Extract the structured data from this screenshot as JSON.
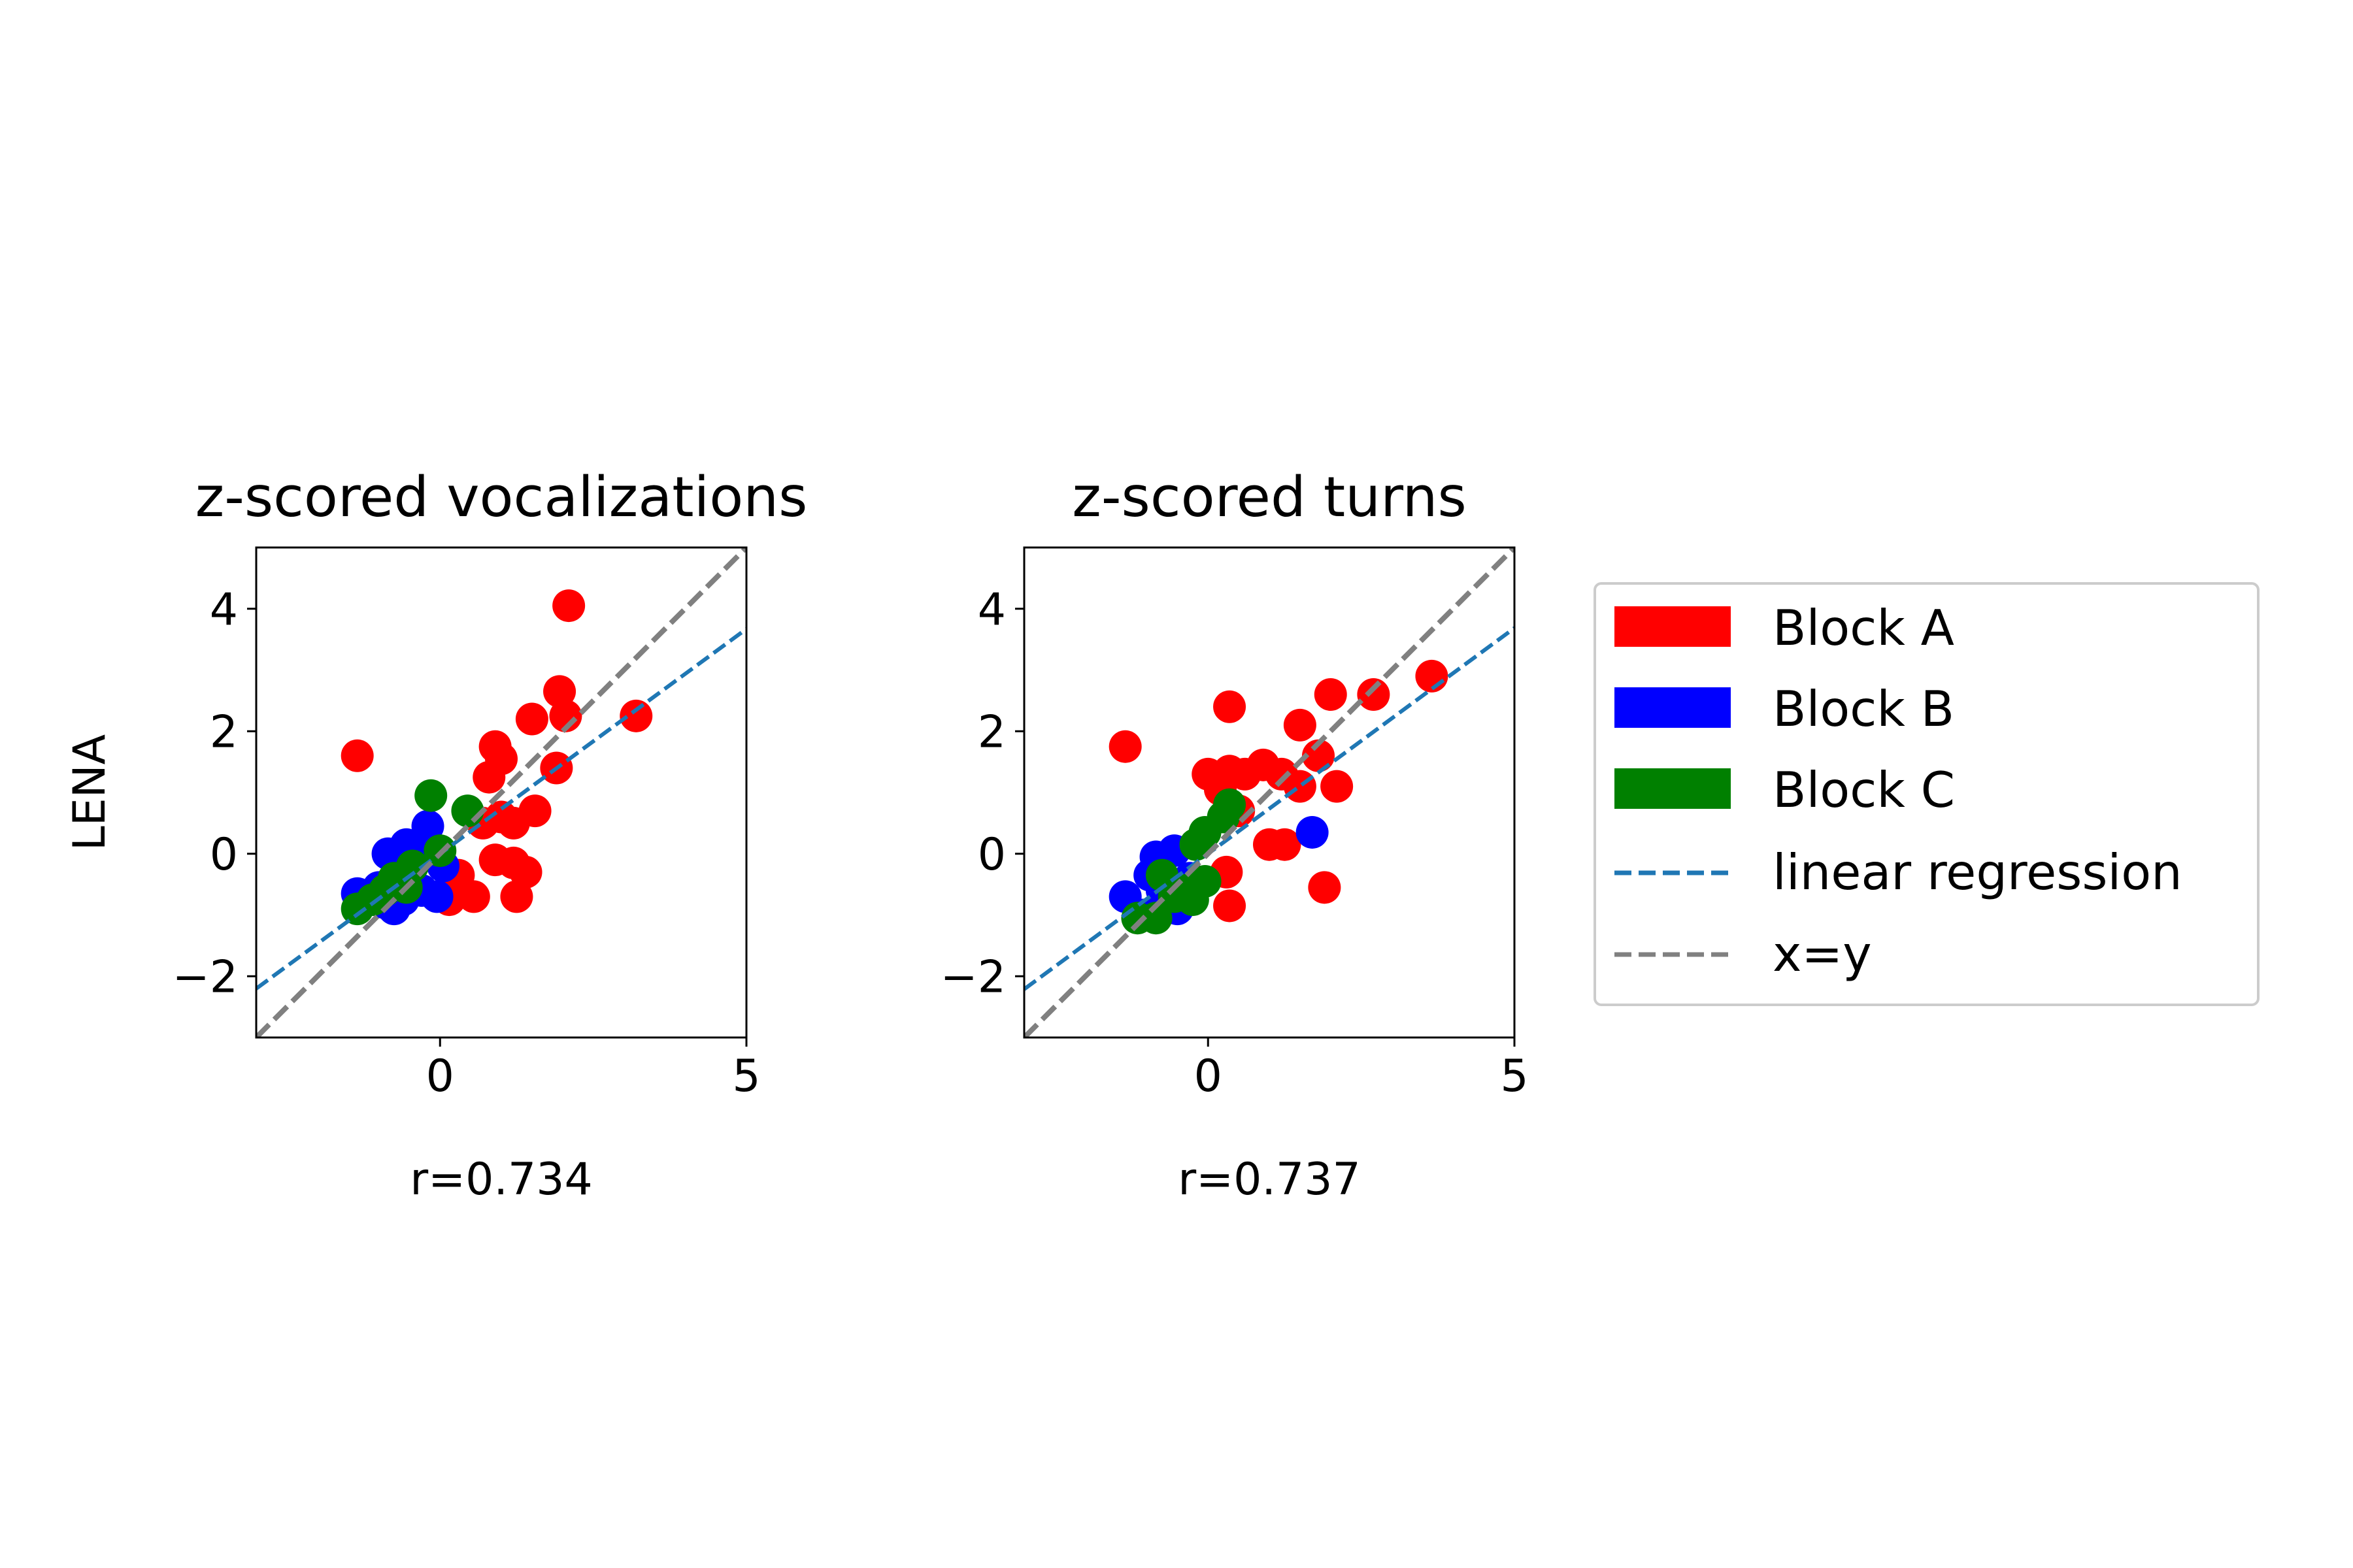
{
  "chart_data": [
    {
      "type": "scatter",
      "title": "z-scored vocalizations",
      "xlabel": "r=0.734",
      "ylabel": "LENA",
      "xlim": [
        -3,
        5
      ],
      "ylim": [
        -3,
        5
      ],
      "xticks": [
        0,
        5
      ],
      "yticks": [
        -2,
        0,
        2,
        4
      ],
      "xtick_labels": [
        "0",
        "5"
      ],
      "ytick_labels": [
        "−2",
        "0",
        "2",
        "4"
      ],
      "grid": false,
      "series": [
        {
          "name": "Block A",
          "color": "#ff0000",
          "points": [
            [
              -1.35,
              1.6
            ],
            [
              2.1,
              4.05
            ],
            [
              1.95,
              2.65
            ],
            [
              2.05,
              2.25
            ],
            [
              1.5,
              2.2
            ],
            [
              3.2,
              2.25
            ],
            [
              0.9,
              1.75
            ],
            [
              1.0,
              1.55
            ],
            [
              0.8,
              1.25
            ],
            [
              1.9,
              1.4
            ],
            [
              1.55,
              0.7
            ],
            [
              1.2,
              0.5
            ],
            [
              0.7,
              0.5
            ],
            [
              1.0,
              0.6
            ],
            [
              1.2,
              -0.15
            ],
            [
              1.4,
              -0.3
            ],
            [
              0.9,
              -0.1
            ],
            [
              1.25,
              -0.7
            ],
            [
              0.55,
              -0.7
            ],
            [
              0.15,
              -0.75
            ],
            [
              0.3,
              -0.35
            ]
          ]
        },
        {
          "name": "Block B",
          "color": "#0000ff",
          "points": [
            [
              -1.35,
              -0.65
            ],
            [
              -0.85,
              0.0
            ],
            [
              -0.55,
              0.15
            ],
            [
              -0.2,
              0.45
            ],
            [
              -0.35,
              0.1
            ],
            [
              -0.05,
              -0.7
            ],
            [
              -0.6,
              -0.75
            ],
            [
              -0.75,
              -0.9
            ],
            [
              -0.9,
              -0.8
            ],
            [
              -0.45,
              -0.5
            ],
            [
              -0.3,
              -0.6
            ],
            [
              -1.0,
              -0.55
            ],
            [
              0.05,
              -0.2
            ]
          ]
        },
        {
          "name": "Block C",
          "color": "#008000",
          "points": [
            [
              -0.15,
              0.95
            ],
            [
              0.45,
              0.7
            ],
            [
              -1.35,
              -0.9
            ],
            [
              -0.75,
              -0.4
            ],
            [
              -0.9,
              -0.6
            ],
            [
              -1.1,
              -0.75
            ],
            [
              -0.55,
              -0.55
            ],
            [
              0.0,
              0.05
            ],
            [
              -0.45,
              -0.2
            ]
          ]
        }
      ],
      "regression": {
        "name": "linear regression",
        "color": "#1f77b4",
        "slope": 0.734,
        "intercept": 0.0
      },
      "identity": {
        "name": "x=y",
        "color": "#808080"
      }
    },
    {
      "type": "scatter",
      "title": "z-scored turns",
      "xlabel": "r=0.737",
      "ylabel": "",
      "xlim": [
        -3,
        5
      ],
      "ylim": [
        -3,
        5
      ],
      "xticks": [
        0,
        5
      ],
      "yticks": [
        -2,
        0,
        2,
        4
      ],
      "xtick_labels": [
        "0",
        "5"
      ],
      "ytick_labels": [
        "−2",
        "0",
        "2",
        "4"
      ],
      "grid": false,
      "series": [
        {
          "name": "Block A",
          "color": "#ff0000",
          "points": [
            [
              -1.35,
              1.75
            ],
            [
              0.35,
              2.4
            ],
            [
              1.5,
              2.1
            ],
            [
              2.0,
              2.6
            ],
            [
              2.7,
              2.6
            ],
            [
              3.65,
              2.9
            ],
            [
              0.0,
              1.3
            ],
            [
              0.35,
              1.35
            ],
            [
              0.6,
              1.3
            ],
            [
              0.9,
              1.45
            ],
            [
              1.2,
              1.3
            ],
            [
              1.8,
              1.6
            ],
            [
              2.1,
              1.1
            ],
            [
              1.5,
              1.1
            ],
            [
              0.2,
              1.05
            ],
            [
              0.5,
              0.7
            ],
            [
              1.0,
              0.15
            ],
            [
              1.25,
              0.15
            ],
            [
              1.9,
              -0.55
            ],
            [
              0.3,
              -0.3
            ],
            [
              0.35,
              -0.85
            ]
          ]
        },
        {
          "name": "Block B",
          "color": "#0000ff",
          "points": [
            [
              1.7,
              0.35
            ],
            [
              -1.35,
              -0.7
            ],
            [
              -0.85,
              -0.05
            ],
            [
              -0.55,
              0.05
            ],
            [
              -0.75,
              -0.6
            ],
            [
              -1.05,
              -1.0
            ],
            [
              -0.5,
              -0.9
            ],
            [
              -0.3,
              -0.4
            ],
            [
              -0.95,
              -0.35
            ]
          ]
        },
        {
          "name": "Block C",
          "color": "#008000",
          "points": [
            [
              -0.05,
              0.35
            ],
            [
              0.25,
              0.6
            ],
            [
              0.35,
              0.8
            ],
            [
              -0.2,
              0.15
            ],
            [
              -1.15,
              -1.05
            ],
            [
              -0.85,
              -1.05
            ],
            [
              -0.75,
              -0.35
            ],
            [
              -0.55,
              -0.7
            ],
            [
              -0.4,
              -0.6
            ],
            [
              -0.25,
              -0.75
            ],
            [
              -0.05,
              -0.45
            ]
          ]
        }
      ],
      "regression": {
        "name": "linear regression",
        "color": "#1f77b4",
        "slope": 0.737,
        "intercept": 0.0
      },
      "identity": {
        "name": "x=y",
        "color": "#808080"
      }
    }
  ],
  "legend": {
    "position": "right",
    "entries": [
      {
        "label": "Block A",
        "kind": "patch",
        "color": "#ff0000"
      },
      {
        "label": "Block B",
        "kind": "patch",
        "color": "#0000ff"
      },
      {
        "label": "Block C",
        "kind": "patch",
        "color": "#008000"
      },
      {
        "label": "linear regression",
        "kind": "dashed-line",
        "color": "#1f77b4"
      },
      {
        "label": "x=y",
        "kind": "dashed-line",
        "color": "#808080"
      }
    ]
  }
}
